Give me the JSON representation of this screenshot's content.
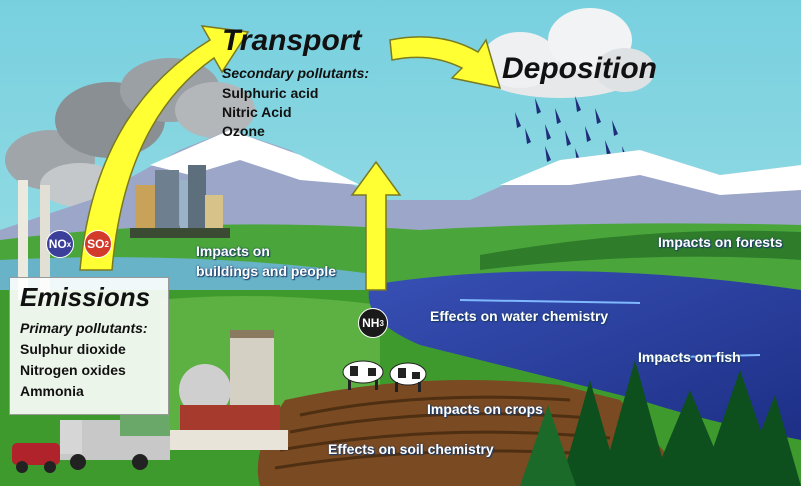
{
  "transport": {
    "title": "Transport",
    "subtitle": "Secondary pollutants:",
    "items": [
      "Sulphuric acid",
      "Nitric Acid",
      "Ozone"
    ]
  },
  "deposition": {
    "title": "Deposition"
  },
  "emissions": {
    "title": "Emissions",
    "subtitle": "Primary pollutants:",
    "items": [
      "Sulphur dioxide",
      "Nitrogen oxides",
      "Ammonia"
    ]
  },
  "badges": {
    "nox": {
      "main": "NO",
      "sub": "x",
      "color": "#3b3f9a"
    },
    "so2": {
      "main": "SO",
      "sub": "2",
      "color": "#d23a2c"
    },
    "nh3": {
      "main": "NH",
      "sub": "3",
      "color": "#1a1a1a"
    }
  },
  "impacts": {
    "buildings_line1": "Impacts on",
    "buildings_line2": "buildings and people",
    "forests": "Impacts on forests",
    "water": "Effects on water chemistry",
    "fish": "Impacts on fish",
    "crops": "Impacts on crops",
    "soil": "Effects on soil chemistry"
  },
  "colors": {
    "sky": "#7fd3de",
    "arrow": "#ffff33",
    "lake": "#2a3fa0",
    "grass": "#3f9a2e",
    "soil": "#7a4a22"
  }
}
